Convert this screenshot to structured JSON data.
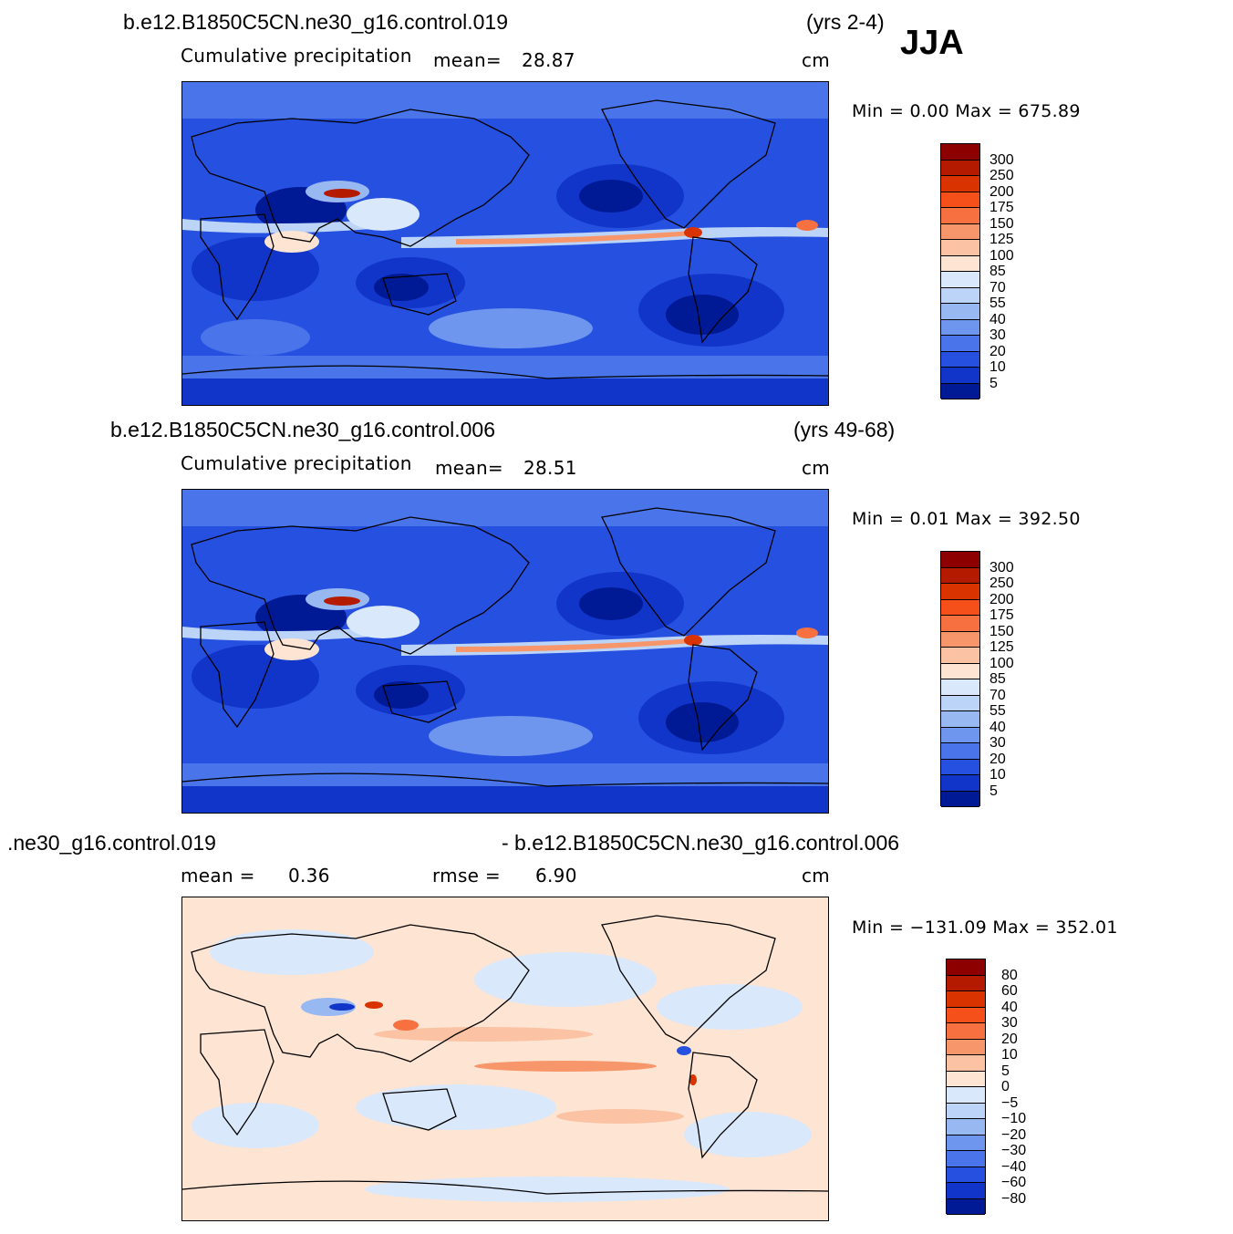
{
  "season": "JJA",
  "panels": [
    {
      "case": "b.e12.B1850C5CN.ne30_g16.control.019",
      "years": "(yrs 2-4)",
      "variable": "Cumulative  precipitation",
      "mean_label": "mean=",
      "mean_value": "28.87",
      "units": "cm",
      "minmax": "Min  =      0.00  Max  =  675.89",
      "colorbar": {
        "labels": [
          "300",
          "250",
          "200",
          "175",
          "150",
          "125",
          "100",
          "85",
          "70",
          "55",
          "40",
          "30",
          "20",
          "10",
          "5"
        ],
        "colors": [
          "#8c0000",
          "#b41a00",
          "#d93300",
          "#f5501a",
          "#f7703f",
          "#f7966b",
          "#fbc2a3",
          "#fde4d3",
          "#dae8fb",
          "#bcd4f7",
          "#98b8f2",
          "#6e96ee",
          "#4a75ea",
          "#2650e0",
          "#1035c8",
          "#001a96"
        ]
      }
    },
    {
      "case": "b.e12.B1850C5CN.ne30_g16.control.006",
      "years": "(yrs 49-68)",
      "variable": "Cumulative  precipitation",
      "mean_label": "mean=",
      "mean_value": "28.51",
      "units": "cm",
      "minmax": "Min  =      0.01  Max  =  392.50",
      "colorbar": {
        "labels": [
          "300",
          "250",
          "200",
          "175",
          "150",
          "125",
          "100",
          "85",
          "70",
          "55",
          "40",
          "30",
          "20",
          "10",
          "5"
        ],
        "colors": [
          "#8c0000",
          "#b41a00",
          "#d93300",
          "#f5501a",
          "#f7703f",
          "#f7966b",
          "#fbc2a3",
          "#fde4d3",
          "#dae8fb",
          "#bcd4f7",
          "#98b8f2",
          "#6e96ee",
          "#4a75ea",
          "#2650e0",
          "#1035c8",
          "#001a96"
        ]
      }
    },
    {
      "case_left": ".ne30_g16.control.019",
      "case_right": "- b.e12.B1850C5CN.ne30_g16.control.006",
      "mean_label": "mean  =",
      "mean_value": "0.36",
      "rmse_label": "rmse  =",
      "rmse_value": "6.90",
      "units": "cm",
      "minmax": "Min  = −131.09  Max  =  352.01",
      "colorbar": {
        "labels": [
          "80",
          "60",
          "40",
          "30",
          "20",
          "10",
          "5",
          "0",
          "−5",
          "−10",
          "−20",
          "−30",
          "−40",
          "−60",
          "−80"
        ],
        "colors": [
          "#8c0000",
          "#b41a00",
          "#d93300",
          "#f5501a",
          "#f7703f",
          "#f7966b",
          "#fbc2a3",
          "#fde4d3",
          "#dae8fb",
          "#bcd4f7",
          "#98b8f2",
          "#6e96ee",
          "#4a75ea",
          "#2650e0",
          "#1035c8",
          "#001a96"
        ]
      }
    }
  ]
}
